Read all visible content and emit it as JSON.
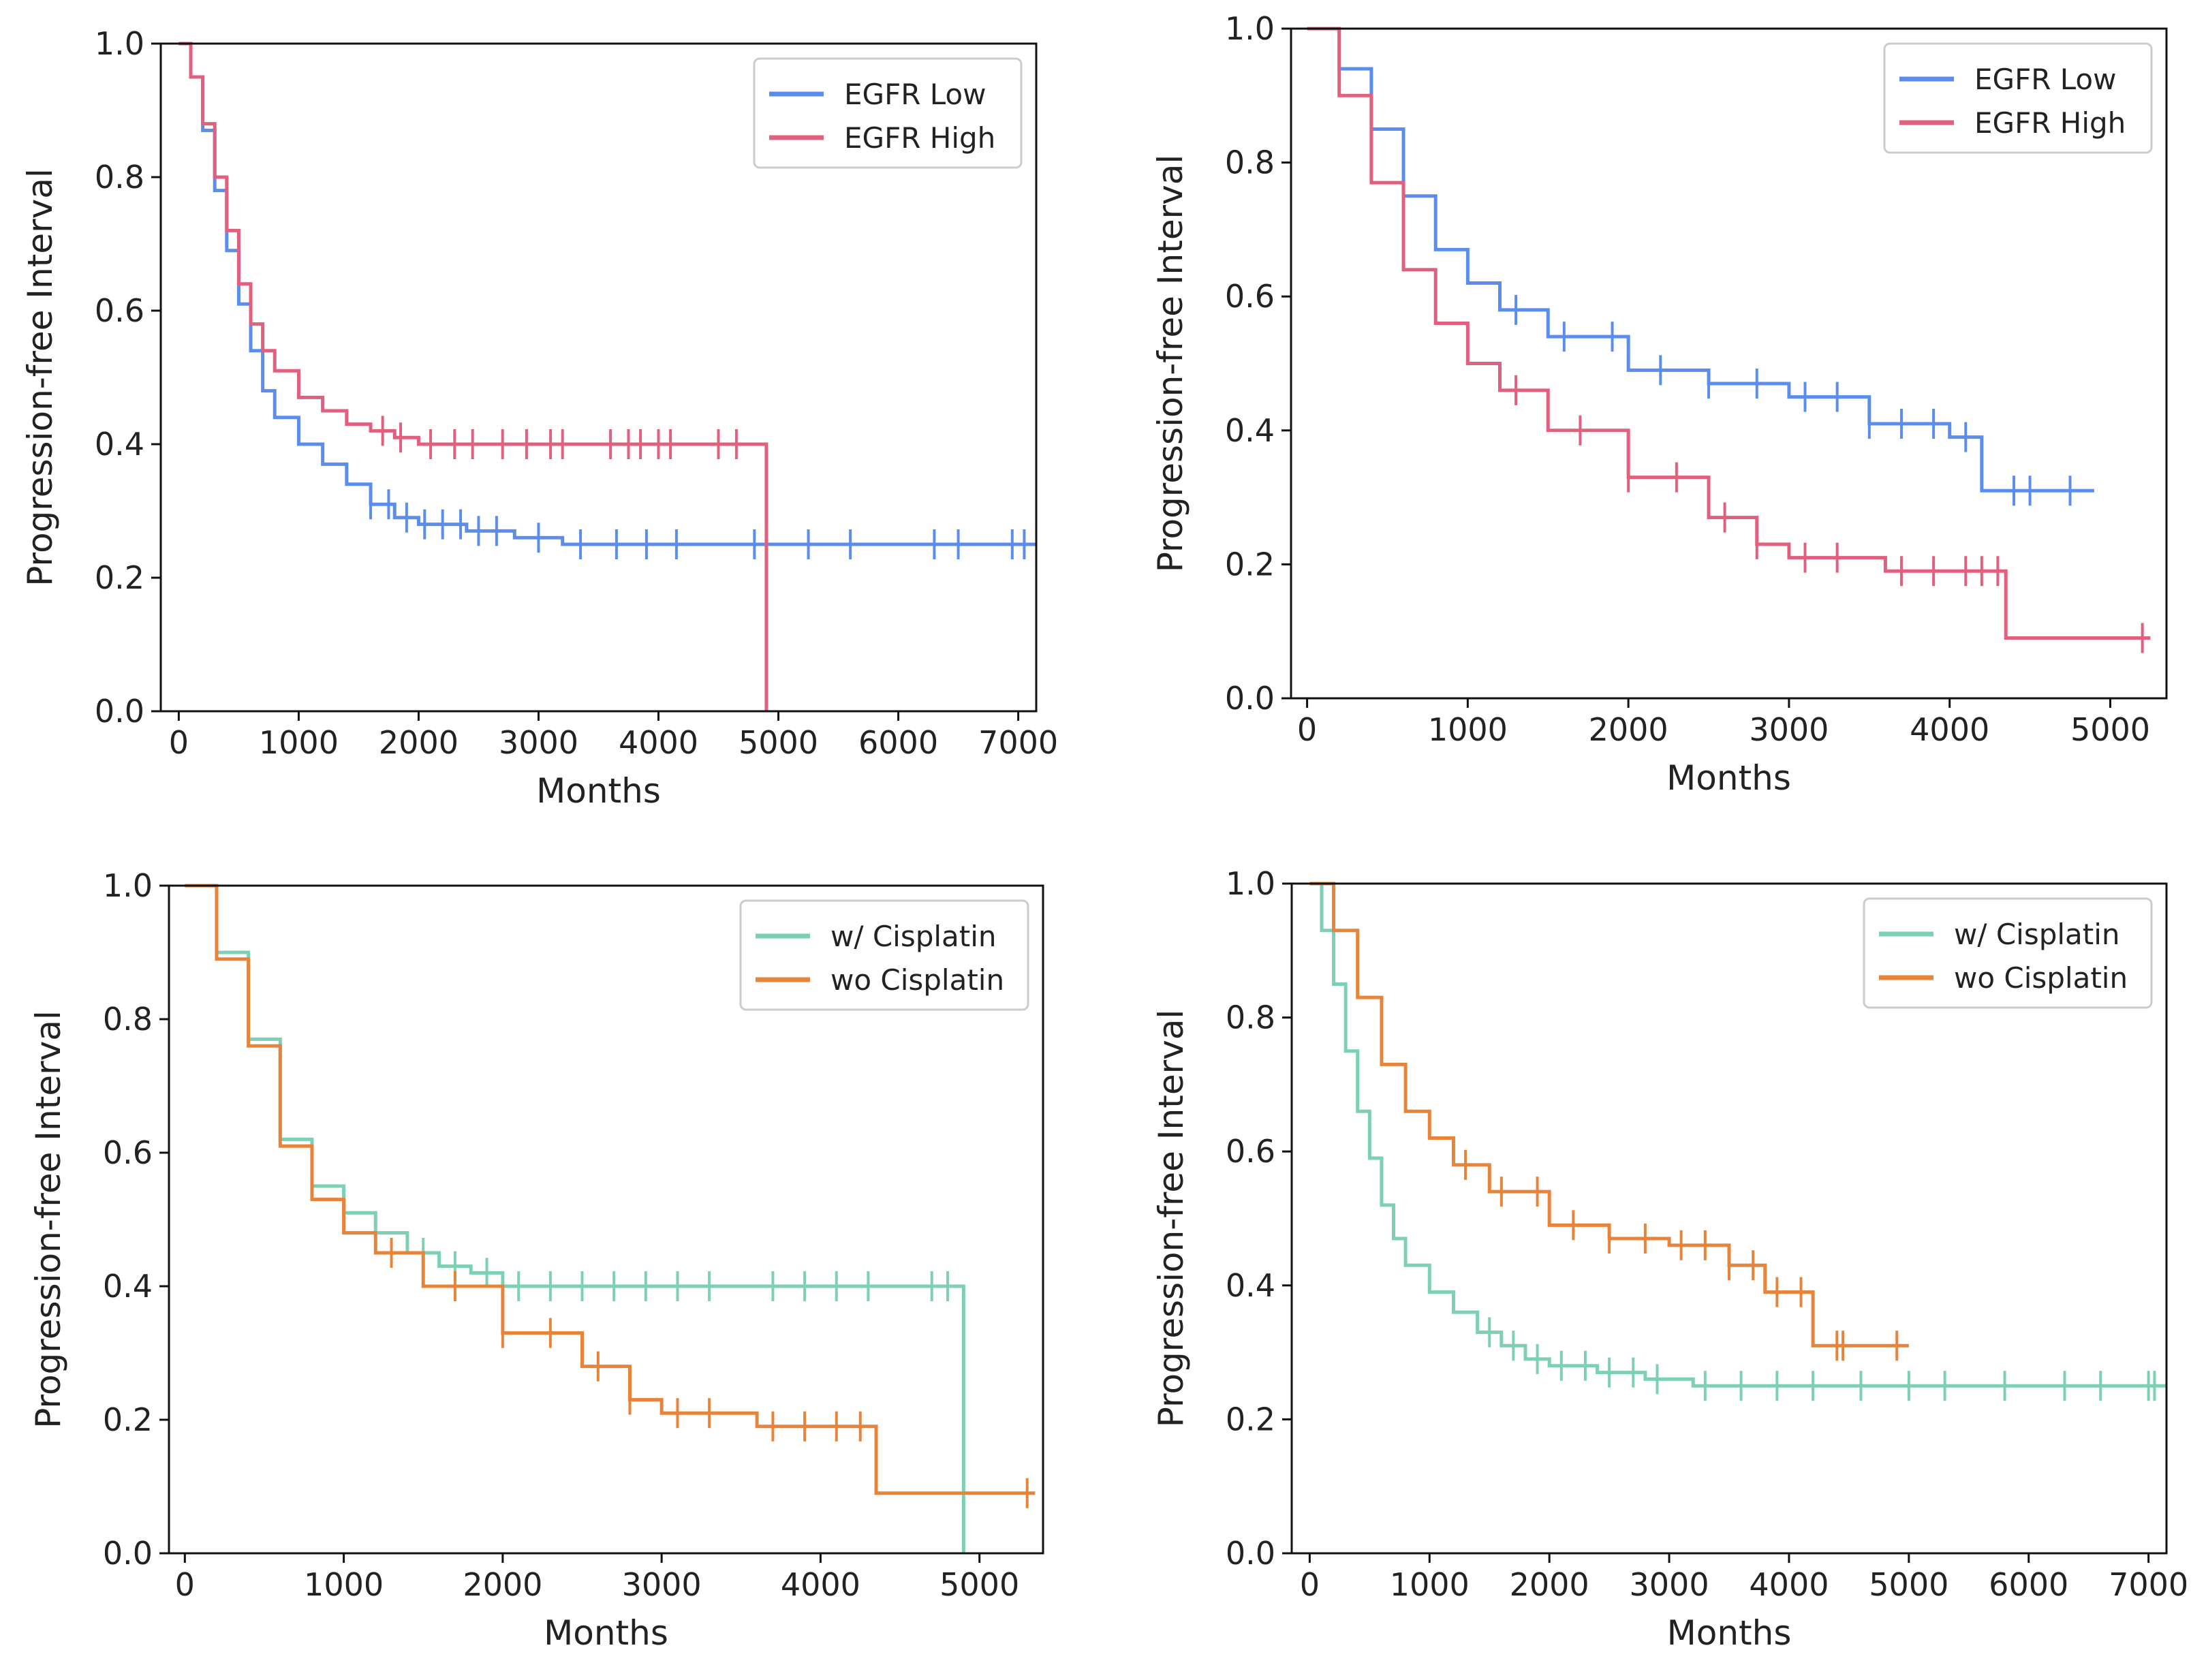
{
  "chart_data": [
    {
      "type": "line",
      "title": "",
      "xlabel": "Months",
      "ylabel": "Progression-free Interval",
      "xlim": [
        -150,
        7150
      ],
      "ylim": [
        0,
        1
      ],
      "xticks": [
        0,
        1000,
        2000,
        3000,
        4000,
        5000,
        6000,
        7000
      ],
      "xtick_labels": [
        "0",
        "1000",
        "2000",
        "3000",
        "4000",
        "5000",
        "6000",
        "7000"
      ],
      "yticks": [
        0,
        0.2,
        0.4,
        0.6,
        0.8,
        1
      ],
      "ytick_labels": [
        "0.0",
        "0.2",
        "0.4",
        "0.6",
        "0.8",
        "1.0"
      ],
      "legend_position": "top-right",
      "series": [
        {
          "name": "EGFR Low",
          "color": "#5b8def",
          "x": [
            0,
            100,
            200,
            300,
            400,
            500,
            600,
            700,
            800,
            1000,
            1200,
            1400,
            1600,
            1800,
            2000,
            2400,
            2800,
            3200,
            7150
          ],
          "y": [
            1.0,
            0.95,
            0.87,
            0.78,
            0.69,
            0.61,
            0.54,
            0.48,
            0.44,
            0.4,
            0.37,
            0.34,
            0.31,
            0.29,
            0.28,
            0.27,
            0.26,
            0.25,
            0.25
          ],
          "censor_x": [
            1600,
            1750,
            1900,
            2050,
            2200,
            2350,
            2500,
            2650,
            3000,
            3350,
            3650,
            3900,
            4150,
            4800,
            5250,
            5600,
            6300,
            6500,
            6950,
            7050
          ]
        },
        {
          "name": "EGFR High",
          "color": "#e0607e",
          "x": [
            0,
            100,
            200,
            300,
            400,
            500,
            600,
            700,
            800,
            1000,
            1200,
            1400,
            1600,
            1800,
            2000,
            4900,
            4900
          ],
          "y": [
            1.0,
            0.95,
            0.88,
            0.8,
            0.72,
            0.64,
            0.58,
            0.54,
            0.51,
            0.47,
            0.45,
            0.43,
            0.42,
            0.41,
            0.4,
            0.4,
            0.0
          ],
          "censor_x": [
            1700,
            1850,
            2100,
            2300,
            2450,
            2700,
            2900,
            3100,
            3200,
            3600,
            3750,
            3850,
            4000,
            4100,
            4500,
            4650
          ]
        }
      ]
    },
    {
      "type": "line",
      "title": "",
      "xlabel": "Months",
      "ylabel": "Progression-free Interval",
      "xlim": [
        -100,
        5350
      ],
      "ylim": [
        0,
        1
      ],
      "xticks": [
        0,
        1000,
        2000,
        3000,
        4000,
        5000
      ],
      "xtick_labels": [
        "0",
        "1000",
        "2000",
        "3000",
        "4000",
        "5000"
      ],
      "yticks": [
        0,
        0.2,
        0.4,
        0.6,
        0.8,
        1
      ],
      "ytick_labels": [
        "0.0",
        "0.2",
        "0.4",
        "0.6",
        "0.8",
        "1.0"
      ],
      "legend_position": "top-right",
      "series": [
        {
          "name": "EGFR Low",
          "color": "#5b8def",
          "x": [
            0,
            200,
            400,
            600,
            800,
            1000,
            1200,
            1500,
            2000,
            2500,
            3000,
            3500,
            4000,
            4200,
            4200,
            4900
          ],
          "y": [
            1.0,
            0.94,
            0.85,
            0.75,
            0.67,
            0.62,
            0.58,
            0.54,
            0.49,
            0.47,
            0.45,
            0.41,
            0.39,
            0.39,
            0.31,
            0.31
          ],
          "censor_x": [
            1300,
            1600,
            1900,
            2200,
            2500,
            2800,
            3100,
            3300,
            3500,
            3700,
            3900,
            4100,
            4400,
            4500,
            4750
          ]
        },
        {
          "name": "EGFR High",
          "color": "#e0607e",
          "x": [
            0,
            200,
            400,
            600,
            800,
            1000,
            1200,
            1500,
            2000,
            2500,
            2800,
            3000,
            3600,
            4350,
            4350,
            5250
          ],
          "y": [
            1.0,
            0.9,
            0.77,
            0.64,
            0.56,
            0.5,
            0.46,
            0.4,
            0.33,
            0.27,
            0.23,
            0.21,
            0.19,
            0.19,
            0.09,
            0.09
          ],
          "censor_x": [
            1300,
            1700,
            2000,
            2300,
            2600,
            2800,
            3100,
            3300,
            3700,
            3900,
            4100,
            4200,
            4300,
            5200
          ]
        }
      ]
    },
    {
      "type": "line",
      "title": "",
      "xlabel": "Months",
      "ylabel": "Progression-free Interval",
      "xlim": [
        -100,
        5400
      ],
      "ylim": [
        0,
        1
      ],
      "xticks": [
        0,
        1000,
        2000,
        3000,
        4000,
        5000
      ],
      "xtick_labels": [
        "0",
        "1000",
        "2000",
        "3000",
        "4000",
        "5000"
      ],
      "yticks": [
        0,
        0.2,
        0.4,
        0.6,
        0.8,
        1
      ],
      "ytick_labels": [
        "0.0",
        "0.2",
        "0.4",
        "0.6",
        "0.8",
        "1.0"
      ],
      "legend_position": "top-right",
      "series": [
        {
          "name": "w/ Cisplatin",
          "color": "#7dcfb6",
          "x": [
            0,
            200,
            400,
            600,
            800,
            1000,
            1200,
            1400,
            1600,
            1800,
            2000,
            4900,
            4900
          ],
          "y": [
            1.0,
            0.9,
            0.77,
            0.62,
            0.55,
            0.51,
            0.48,
            0.45,
            0.43,
            0.42,
            0.4,
            0.4,
            0.0
          ],
          "censor_x": [
            1500,
            1700,
            1900,
            2100,
            2300,
            2500,
            2700,
            2900,
            3100,
            3300,
            3700,
            3900,
            4100,
            4300,
            4700,
            4800
          ]
        },
        {
          "name": "wo Cisplatin",
          "color": "#e8833a",
          "x": [
            0,
            200,
            400,
            600,
            800,
            1000,
            1200,
            1500,
            2000,
            2500,
            2800,
            3000,
            3600,
            4350,
            4350,
            5350
          ],
          "y": [
            1.0,
            0.89,
            0.76,
            0.61,
            0.53,
            0.48,
            0.45,
            0.4,
            0.33,
            0.28,
            0.23,
            0.21,
            0.19,
            0.19,
            0.09,
            0.09
          ],
          "censor_x": [
            1300,
            1700,
            2000,
            2300,
            2600,
            2800,
            3100,
            3300,
            3700,
            3900,
            4100,
            4250,
            5300
          ]
        }
      ]
    },
    {
      "type": "line",
      "title": "",
      "xlabel": "Months",
      "ylabel": "Progression-free Interval",
      "xlim": [
        -150,
        7150
      ],
      "ylim": [
        0,
        1
      ],
      "xticks": [
        0,
        1000,
        2000,
        3000,
        4000,
        5000,
        6000,
        7000
      ],
      "xtick_labels": [
        "0",
        "1000",
        "2000",
        "3000",
        "4000",
        "5000",
        "6000",
        "7000"
      ],
      "yticks": [
        0,
        0.2,
        0.4,
        0.6,
        0.8,
        1
      ],
      "ytick_labels": [
        "0.0",
        "0.2",
        "0.4",
        "0.6",
        "0.8",
        "1.0"
      ],
      "legend_position": "top-right",
      "series": [
        {
          "name": "w/ Cisplatin",
          "color": "#7dcfb6",
          "x": [
            0,
            100,
            200,
            300,
            400,
            500,
            600,
            700,
            800,
            1000,
            1200,
            1400,
            1600,
            1800,
            2000,
            2400,
            2800,
            3200,
            7150
          ],
          "y": [
            1.0,
            0.93,
            0.85,
            0.75,
            0.66,
            0.59,
            0.52,
            0.47,
            0.43,
            0.39,
            0.36,
            0.33,
            0.31,
            0.29,
            0.28,
            0.27,
            0.26,
            0.25,
            0.25
          ],
          "censor_x": [
            1500,
            1700,
            1900,
            2100,
            2300,
            2500,
            2700,
            2900,
            3300,
            3600,
            3900,
            4200,
            4600,
            5000,
            5300,
            5800,
            6300,
            6600,
            7000,
            7050
          ]
        },
        {
          "name": "wo Cisplatin",
          "color": "#e8833a",
          "x": [
            0,
            200,
            400,
            600,
            800,
            1000,
            1200,
            1500,
            2000,
            2500,
            3000,
            3500,
            3800,
            4200,
            4200,
            5000
          ],
          "y": [
            1.0,
            0.93,
            0.83,
            0.73,
            0.66,
            0.62,
            0.58,
            0.54,
            0.49,
            0.47,
            0.46,
            0.43,
            0.39,
            0.39,
            0.31,
            0.31
          ],
          "censor_x": [
            1300,
            1600,
            1900,
            2200,
            2500,
            2800,
            3100,
            3300,
            3500,
            3700,
            3900,
            4100,
            4400,
            4450,
            4900
          ]
        }
      ]
    }
  ]
}
